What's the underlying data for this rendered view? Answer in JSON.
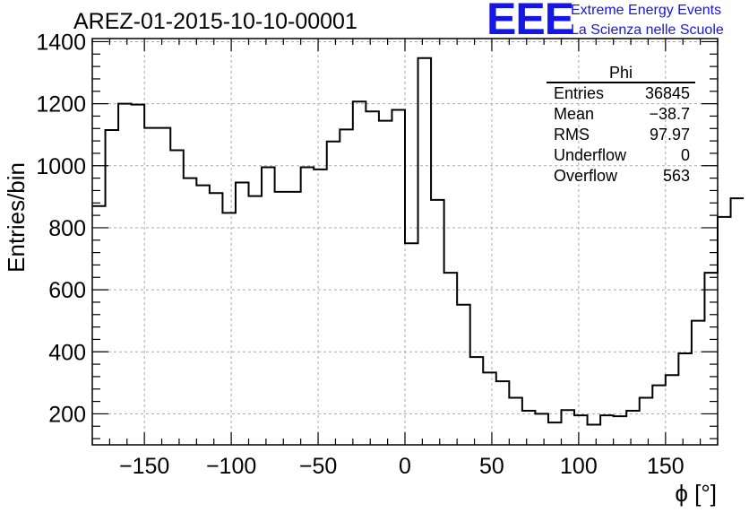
{
  "title": "AREZ-01-2015-10-10-00001",
  "logo": {
    "text": "EEE",
    "line1": "Extreme Energy Events",
    "line2": "La Scienza nelle Scuole",
    "color": "#1515e6"
  },
  "stats": {
    "title": "Phi",
    "rows": [
      {
        "label": "Entries",
        "value": "36845"
      },
      {
        "label": "Mean",
        "value": "−38.7"
      },
      {
        "label": "RMS",
        "value": "97.97"
      },
      {
        "label": "Underflow",
        "value": "0"
      },
      {
        "label": "Overflow",
        "value": "563"
      }
    ]
  },
  "chart_data": {
    "type": "histogram",
    "title": "AREZ-01-2015-10-10-00001",
    "xlabel": "ϕ [°]",
    "ylabel": "Entries/bin",
    "xlim": [
      -180,
      180
    ],
    "ylim": [
      100,
      1410
    ],
    "grid": true,
    "line_color": "#000000",
    "xticks": [
      -150,
      -100,
      -50,
      0,
      50,
      100,
      150
    ],
    "yticks": [
      200,
      400,
      600,
      800,
      1000,
      1200,
      1400
    ],
    "bin_edges_start": -180,
    "bin_width": 7.5,
    "values": [
      870,
      1115,
      1200,
      1197,
      1122,
      1122,
      1050,
      960,
      937,
      912,
      848,
      946,
      902,
      995,
      916,
      916,
      995,
      988,
      1078,
      1117,
      1207,
      1175,
      1145,
      1180,
      750,
      1347,
      890,
      655,
      552,
      383,
      333,
      305,
      252,
      210,
      200,
      172,
      212,
      195,
      165,
      195,
      192,
      210,
      252,
      292,
      325,
      395,
      500,
      655,
      835,
      895
    ]
  }
}
